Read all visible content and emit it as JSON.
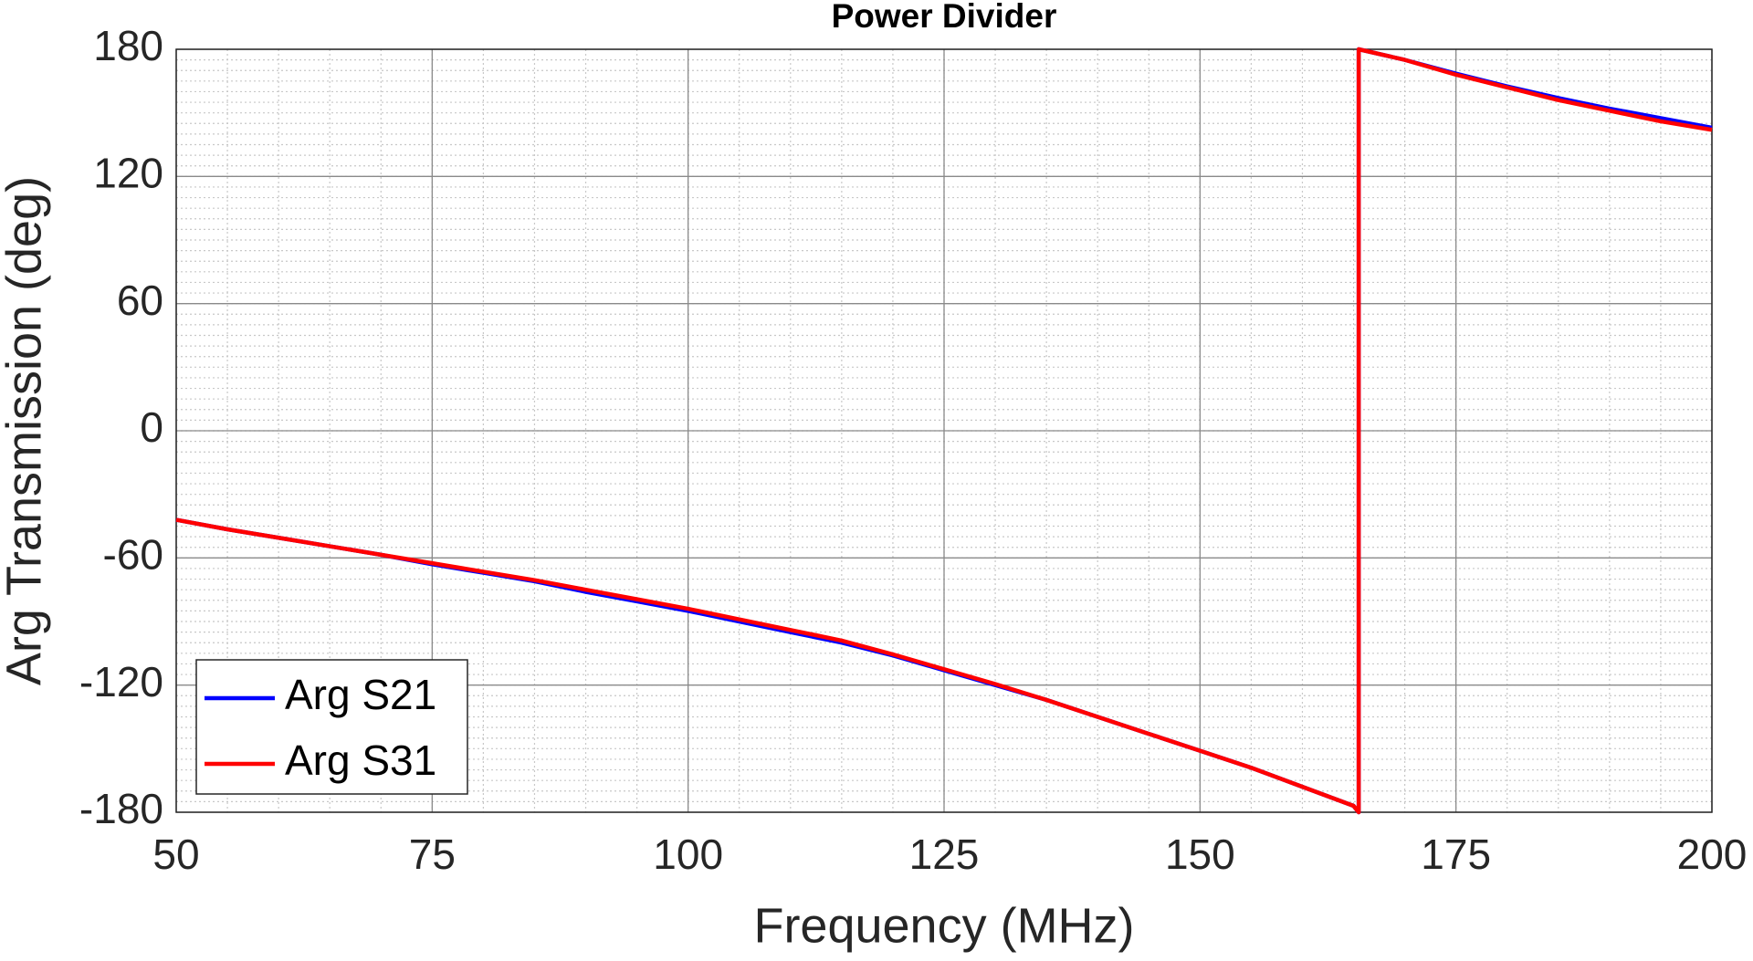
{
  "chart_data": {
    "type": "line",
    "title": "Power Divider",
    "x_label": "Frequency (MHz)",
    "y_label": "Arg Transmission (deg)",
    "x": [
      50,
      55,
      60,
      65,
      70,
      75,
      80,
      85,
      90,
      95,
      100,
      105,
      110,
      115,
      120,
      125,
      130,
      135,
      140,
      145,
      150,
      155,
      160,
      165,
      165.5,
      165.5,
      170,
      175,
      180,
      185,
      190,
      195,
      200
    ],
    "series": [
      {
        "name": "Arg S21",
        "color": "#0000ff",
        "values": [
          -42,
          -46.5,
          -50.5,
          -54.5,
          -58.5,
          -63,
          -67,
          -71,
          -76,
          -80.5,
          -85,
          -90,
          -95,
          -100,
          -106,
          -113,
          -120,
          -127,
          -135,
          -143,
          -151,
          -159,
          -168,
          -177,
          -180,
          180,
          175,
          168.5,
          162.5,
          157,
          152,
          147.5,
          143
        ]
      },
      {
        "name": "Arg S31",
        "color": "#ff0000",
        "values": [
          -42,
          -46.5,
          -50.5,
          -54.5,
          -58.5,
          -62.5,
          -66.5,
          -70.5,
          -75,
          -79.5,
          -84,
          -89,
          -94,
          -99,
          -105.5,
          -112.5,
          -119.5,
          -127,
          -135,
          -143,
          -151,
          -159,
          -168,
          -177,
          -180,
          180,
          175,
          168,
          162,
          156,
          151,
          146,
          142
        ]
      }
    ],
    "xlim": [
      50,
      200
    ],
    "xticks": [
      50,
      75,
      100,
      125,
      150,
      175,
      200
    ],
    "ylim": [
      -180,
      180
    ],
    "yticks": [
      -180,
      -120,
      -60,
      0,
      60,
      120,
      180
    ],
    "grid": true,
    "minor_grid": true,
    "legend": "lower left"
  }
}
